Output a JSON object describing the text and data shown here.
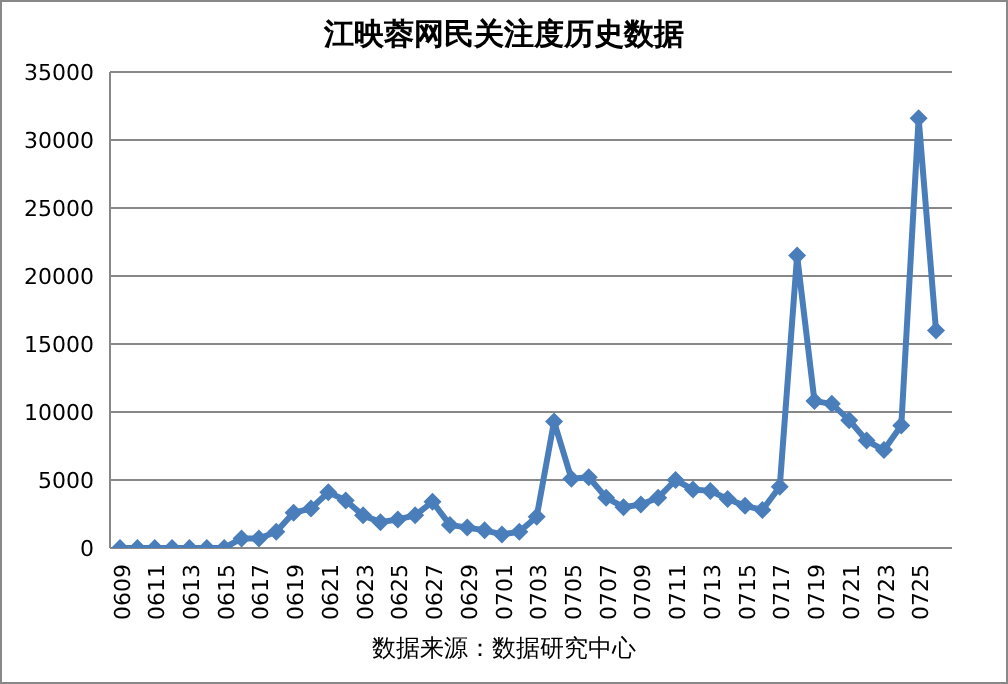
{
  "chart_data": {
    "type": "line",
    "title": "江映蓉网民关注度历史数据",
    "categories": [
      "0609",
      null,
      "0611",
      null,
      "0613",
      null,
      "0615",
      null,
      "0617",
      null,
      "0619",
      null,
      "0621",
      null,
      "0623",
      null,
      "0625",
      null,
      "0627",
      null,
      "0629",
      null,
      "0701",
      null,
      "0703",
      null,
      "0705",
      null,
      "0707",
      null,
      "0709",
      null,
      "0711",
      null,
      "0713",
      null,
      "0715",
      null,
      "0717",
      null,
      "0719",
      null,
      "0721",
      null,
      "0723",
      null,
      "0725",
      null
    ],
    "series": [
      {
        "color": "#4a7ebb",
        "values": [
          0,
          0,
          0,
          0,
          0,
          0,
          0,
          700,
          700,
          1200,
          2600,
          2900,
          4100,
          3500,
          2400,
          1900,
          2100,
          2400,
          3400,
          1700,
          1500,
          1300,
          1000,
          1200,
          2300,
          9300,
          5100,
          5200,
          3700,
          3000,
          3200,
          3700,
          5000,
          4300,
          4200,
          3600,
          3100,
          2800,
          4500,
          21500,
          10800,
          10600,
          9400,
          7900,
          7200,
          9000,
          31600,
          16000
        ]
      }
    ],
    "ylim": [
      0,
      35000
    ],
    "yticks": [
      0,
      5000,
      10000,
      15000,
      20000,
      25000,
      30000,
      35000
    ],
    "grid": "y",
    "marker": "diamond",
    "line_style": "solid",
    "legend": false,
    "annotations": [
      "数据来源：数据研究中心"
    ]
  }
}
